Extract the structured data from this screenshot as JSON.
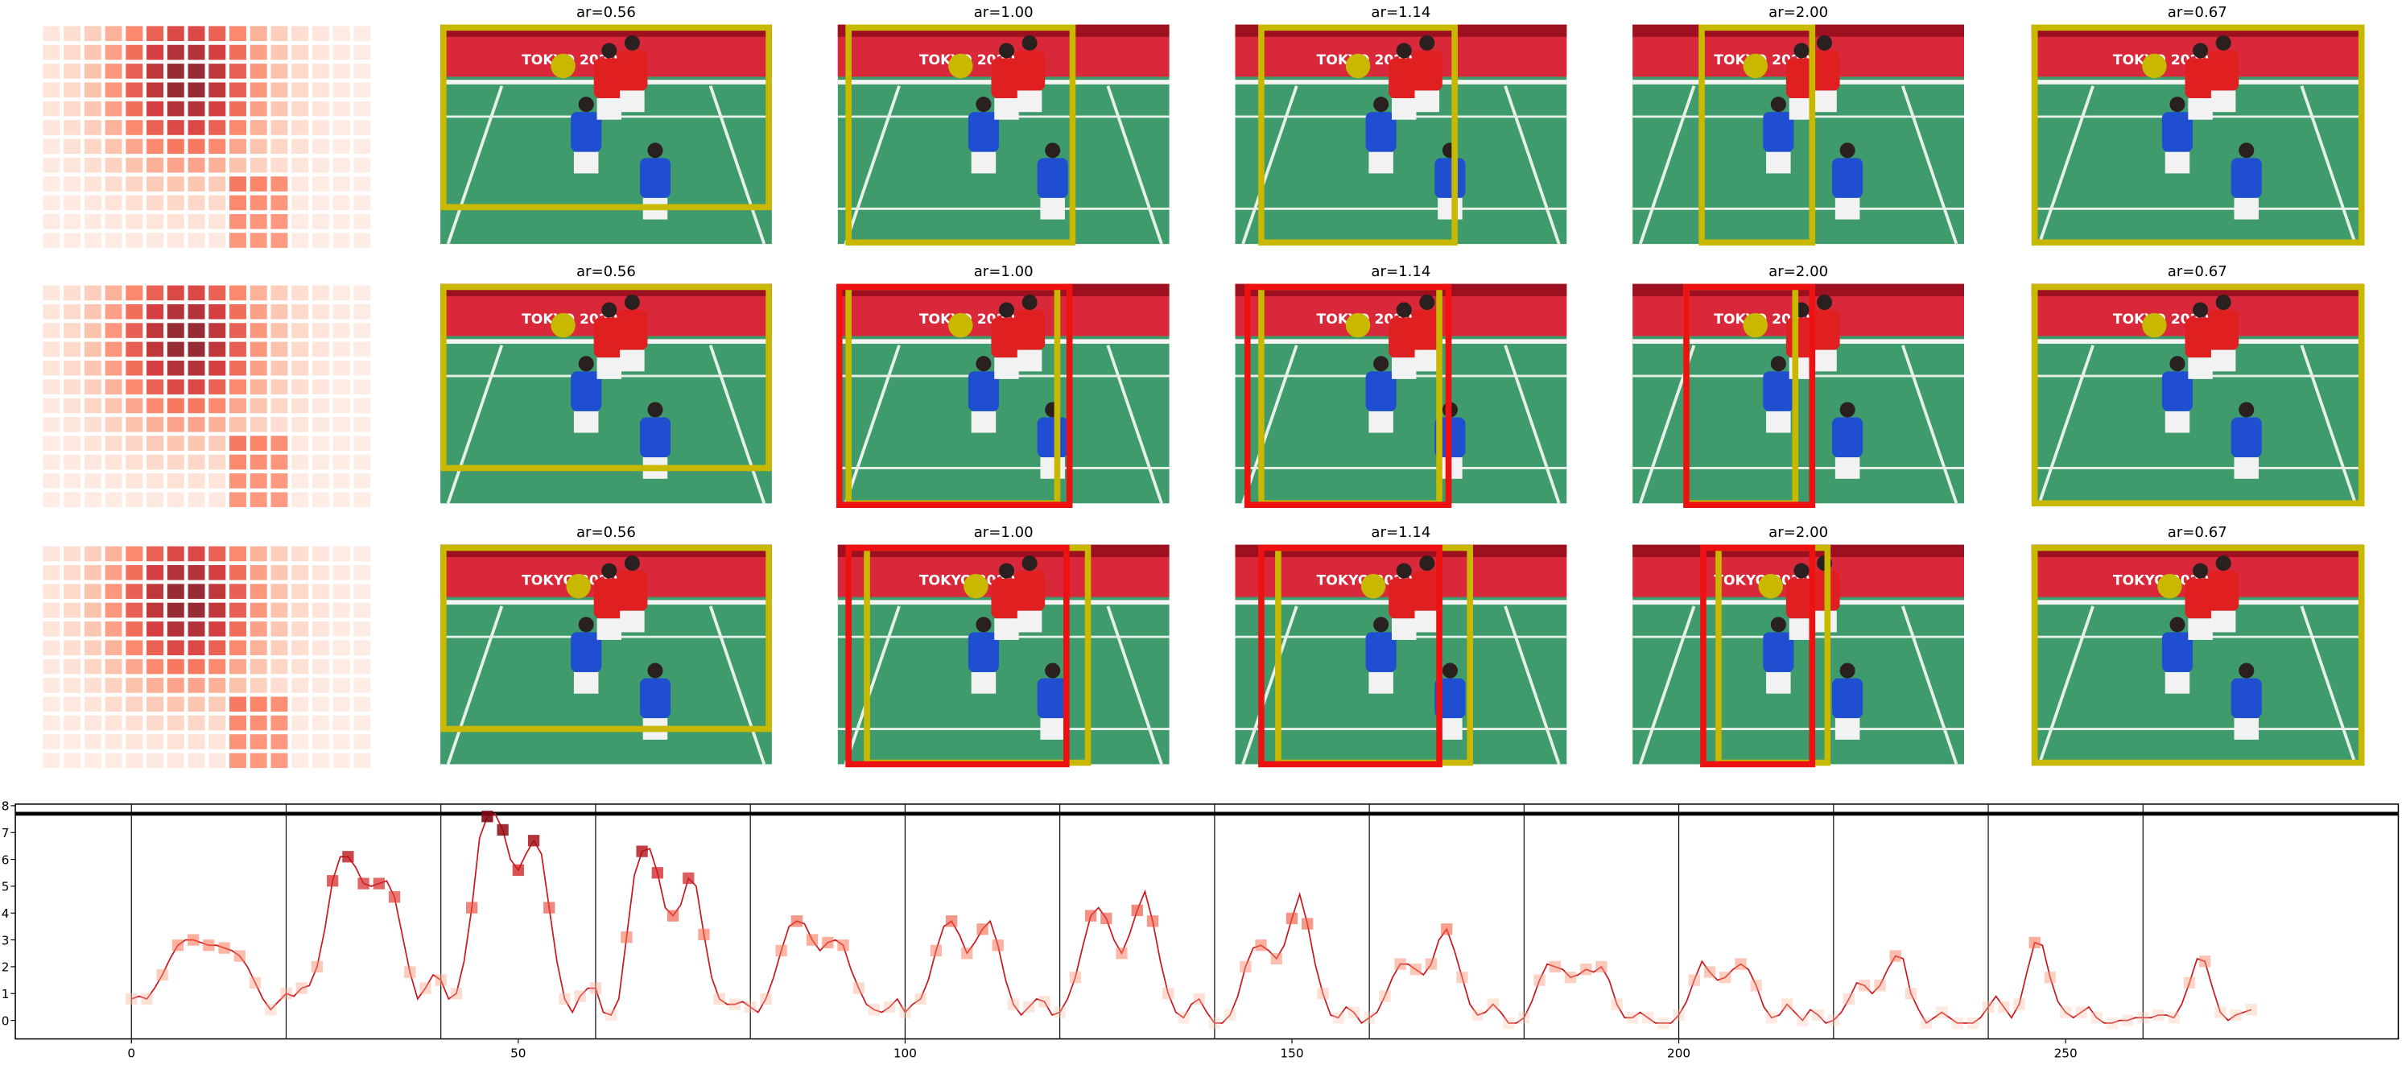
{
  "panels": {
    "titles": [
      [
        "ar=0.56",
        "ar=1.00",
        "ar=1.14",
        "ar=2.00",
        "ar=0.67"
      ],
      [
        "ar=0.56",
        "ar=1.00",
        "ar=1.14",
        "ar=2.00",
        "ar=0.67"
      ],
      [
        "ar=0.56",
        "ar=1.00",
        "ar=1.14",
        "ar=2.00",
        "ar=0.67"
      ]
    ],
    "photo_text": "TOKYO 2020"
  },
  "chart_data": {
    "type": "line",
    "color": "#cb181d",
    "x": [
      0,
      1,
      2,
      3,
      4,
      5,
      6,
      7,
      8,
      9,
      10,
      11,
      12,
      13,
      14,
      15,
      16,
      17,
      18,
      19,
      20,
      21,
      22,
      23,
      24,
      25,
      26,
      27,
      28,
      29,
      30,
      31,
      32,
      33,
      34,
      35,
      36,
      37,
      38,
      39,
      40,
      41,
      42,
      43,
      44,
      45,
      46,
      47,
      48,
      49,
      50,
      51,
      52,
      53,
      54,
      55,
      56,
      57,
      58,
      59,
      60,
      61,
      62,
      63,
      64,
      65,
      66,
      67,
      68,
      69,
      70,
      71,
      72,
      73,
      74,
      75,
      76,
      77,
      78,
      79,
      80,
      81,
      82,
      83,
      84,
      85,
      86,
      87,
      88,
      89,
      90,
      91,
      92,
      93,
      94,
      95,
      96,
      97,
      98,
      99,
      100,
      101,
      102,
      103,
      104,
      105,
      106,
      107,
      108,
      109,
      110,
      111,
      112,
      113,
      114,
      115,
      116,
      117,
      118,
      119,
      120,
      121,
      122,
      123,
      124,
      125,
      126,
      127,
      128,
      129,
      130,
      131,
      132,
      133,
      134,
      135,
      136,
      137,
      138,
      139,
      140,
      141,
      142,
      143,
      144,
      145,
      146,
      147,
      148,
      149,
      150,
      151,
      152,
      153,
      154,
      155,
      156,
      157,
      158,
      159,
      160,
      161,
      162,
      163,
      164,
      165,
      166,
      167,
      168,
      169,
      170,
      171,
      172,
      173,
      174,
      175,
      176,
      177,
      178,
      179,
      180,
      181,
      182,
      183,
      184,
      185,
      186,
      187,
      188,
      189,
      190,
      191,
      192,
      193,
      194,
      195,
      196,
      197,
      198,
      199,
      200,
      201,
      202,
      203,
      204,
      205,
      206,
      207,
      208,
      209,
      210,
      211,
      212,
      213,
      214,
      215,
      216,
      217,
      218,
      219,
      220,
      221,
      222,
      223,
      224,
      225,
      226,
      227,
      228,
      229,
      230,
      231,
      232,
      233,
      234,
      235,
      236,
      237,
      238,
      239,
      240,
      241,
      242,
      243,
      244,
      245,
      246,
      247,
      248,
      249,
      250,
      251,
      252,
      253,
      254,
      255,
      256,
      257,
      258,
      259,
      260,
      261,
      262,
      263,
      264,
      265,
      266,
      267,
      268,
      269,
      270,
      271,
      272,
      273,
      274
    ],
    "values": [
      0.8,
      0.9,
      0.8,
      1.2,
      1.7,
      2.3,
      2.8,
      3.0,
      3.0,
      2.9,
      2.8,
      2.8,
      2.7,
      2.6,
      2.4,
      2.0,
      1.4,
      0.8,
      0.4,
      0.7,
      1.0,
      0.9,
      1.2,
      1.3,
      2.0,
      3.4,
      5.2,
      6.1,
      6.1,
      5.7,
      5.1,
      5.0,
      5.1,
      5.2,
      4.6,
      3.2,
      1.8,
      0.8,
      1.2,
      1.7,
      1.5,
      0.8,
      1.0,
      2.2,
      4.2,
      6.8,
      7.6,
      7.7,
      7.1,
      6.0,
      5.6,
      6.2,
      6.7,
      6.2,
      4.2,
      2.2,
      0.8,
      0.3,
      0.9,
      1.2,
      1.2,
      0.3,
      0.2,
      0.8,
      3.1,
      5.4,
      6.3,
      6.4,
      5.5,
      4.2,
      3.9,
      4.3,
      5.3,
      5.0,
      3.2,
      1.6,
      0.8,
      0.6,
      0.6,
      0.7,
      0.5,
      0.3,
      0.8,
      1.6,
      2.6,
      3.5,
      3.7,
      3.6,
      3.0,
      2.6,
      2.9,
      3.0,
      2.8,
      1.9,
      1.2,
      0.6,
      0.4,
      0.3,
      0.5,
      0.8,
      0.3,
      0.6,
      0.8,
      1.5,
      2.6,
      3.5,
      3.7,
      3.2,
      2.5,
      2.9,
      3.4,
      3.7,
      2.8,
      1.5,
      0.6,
      0.2,
      0.5,
      0.8,
      0.7,
      0.2,
      0.3,
      0.8,
      1.6,
      2.8,
      3.9,
      4.2,
      3.8,
      3.0,
      2.5,
      3.2,
      4.1,
      4.8,
      3.7,
      2.2,
      1.0,
      0.3,
      0.1,
      0.6,
      0.8,
      0.3,
      -0.1,
      -0.1,
      0.2,
      0.9,
      2.0,
      2.7,
      2.8,
      2.6,
      2.3,
      2.8,
      3.8,
      4.7,
      3.6,
      2.1,
      1.0,
      0.2,
      0.1,
      0.5,
      0.3,
      -0.1,
      0.1,
      0.3,
      0.9,
      1.6,
      2.1,
      2.1,
      1.9,
      1.7,
      2.1,
      3.0,
      3.4,
      2.6,
      1.6,
      0.6,
      0.2,
      0.3,
      0.6,
      0.3,
      -0.1,
      -0.1,
      0.1,
      0.7,
      1.5,
      2.1,
      2.0,
      1.9,
      1.6,
      1.7,
      1.9,
      1.8,
      2.0,
      1.5,
      0.6,
      0.1,
      0.1,
      0.3,
      0.1,
      -0.1,
      -0.1,
      -0.1,
      0.2,
      0.7,
      1.5,
      2.2,
      1.8,
      1.5,
      1.6,
      1.9,
      2.1,
      1.9,
      1.3,
      0.5,
      0.1,
      0.2,
      0.6,
      0.3,
      0,
      0.4,
      0.2,
      -0.1,
      0,
      0.3,
      0.8,
      1.4,
      1.3,
      1.0,
      1.3,
      1.9,
      2.4,
      2.3,
      1.0,
      0.4,
      -0.1,
      0.1,
      0.3,
      0.1,
      -0.1,
      -0.1,
      -0.1,
      0.1,
      0.5,
      0.9,
      0.5,
      0.1,
      0.6,
      1.8,
      2.9,
      2.8,
      1.6,
      0.7,
      0.3,
      0.1,
      0.3,
      0.5,
      0.1,
      -0.1,
      -0.1,
      0,
      0,
      0.1,
      0.1,
      0.1,
      0.2,
      0.2,
      0.1,
      0.6,
      1.4,
      2.3,
      2.2,
      1.2,
      0.3,
      0.0,
      0.2,
      0.3,
      0.4
    ],
    "xlim": [
      -15,
      293
    ],
    "ylim": [
      -0.69,
      8.06
    ],
    "xticks": [
      0,
      50,
      100,
      150,
      200,
      250
    ],
    "yticks": [
      0,
      1,
      2,
      3,
      4,
      5,
      6,
      7,
      8
    ],
    "vlines": [
      0,
      20,
      40,
      60,
      80,
      100,
      120,
      140,
      160,
      180,
      200,
      220,
      240,
      260
    ],
    "hline": 7.7
  }
}
